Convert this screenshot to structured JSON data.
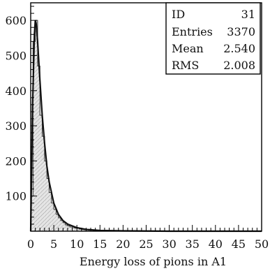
{
  "chart_data": {
    "type": "histogram",
    "xlabel": "Energy loss of pions in A1",
    "ylabel": "",
    "xlim": [
      0,
      50
    ],
    "ylim": [
      0,
      650
    ],
    "x_ticks": [
      "0",
      "5",
      "10",
      "15",
      "20",
      "25",
      "30",
      "35",
      "40",
      "45",
      "50"
    ],
    "y_ticks": [
      "100",
      "200",
      "300",
      "400",
      "500",
      "600"
    ],
    "grid": false,
    "bin_width": 0.5,
    "bins_start": [
      0,
      0.5,
      1,
      1.5,
      2,
      2.5,
      3,
      3.5,
      4,
      4.5,
      5,
      5.5,
      6,
      6.5,
      7,
      7.5,
      8,
      8.5,
      9,
      9.5,
      10,
      10.5,
      11,
      11.5,
      12,
      12.5,
      13,
      13.5,
      14,
      14.5,
      15,
      16,
      17,
      18,
      19,
      20
    ],
    "counts": [
      100,
      540,
      600,
      470,
      330,
      270,
      200,
      150,
      110,
      80,
      62,
      48,
      38,
      30,
      24,
      18,
      15,
      12,
      10,
      9,
      8,
      6,
      5,
      4,
      4,
      3,
      3,
      2,
      2,
      2,
      2,
      1,
      1,
      1,
      1,
      0
    ],
    "fit_curve": {
      "x": [
        0,
        0.4,
        0.8,
        1.0,
        1.2,
        1.5,
        2.0,
        2.5,
        3.0,
        3.5,
        4.0,
        5.0,
        6.0,
        7.0,
        8.0,
        10.0,
        12.0,
        15.0,
        20.0,
        30.0,
        50.0
      ],
      "y": [
        0,
        350,
        560,
        600,
        590,
        540,
        430,
        330,
        250,
        185,
        140,
        80,
        48,
        30,
        20,
        10,
        5,
        2,
        1,
        0,
        0
      ]
    }
  },
  "stats_box": {
    "id_label": "ID",
    "id_value": "31",
    "entries_label": "Entries",
    "entries_value": "3370",
    "mean_label": "Mean",
    "mean_value": "2.540",
    "rms_label": "RMS",
    "rms_value": "2.008"
  },
  "colors": {
    "histogram_fill": "#d6d6d6",
    "line": "#111111",
    "frame": "#000000"
  }
}
